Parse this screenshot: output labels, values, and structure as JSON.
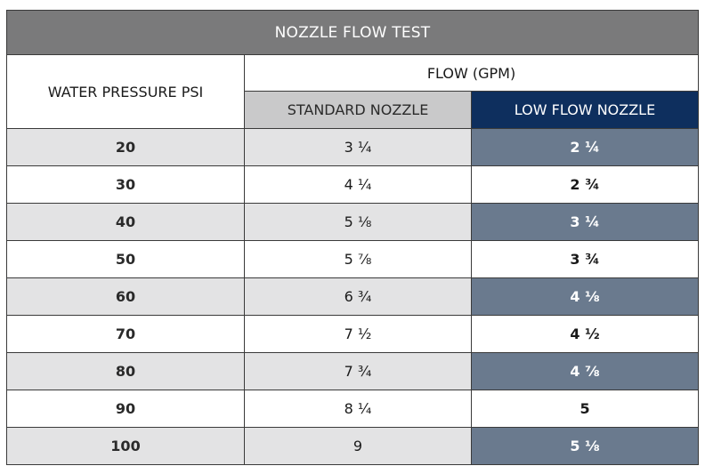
{
  "table": {
    "title": "NOZZLE FLOW TEST",
    "pressure_header": "WATER PRESSURE PSI",
    "flow_header": "FLOW (GPM)",
    "standard_header": "STANDARD NOZZLE",
    "low_flow_header": "LOW FLOW NOZZLE",
    "rows": [
      {
        "psi": "20",
        "standard": "3 ¼",
        "low": "2 ¼"
      },
      {
        "psi": "30",
        "standard": "4 ¼",
        "low": "2 ¾"
      },
      {
        "psi": "40",
        "standard": "5 ⅛",
        "low": "3 ¼"
      },
      {
        "psi": "50",
        "standard": "5 ⅞",
        "low": "3 ¾"
      },
      {
        "psi": "60",
        "standard": "6 ¾",
        "low": "4 ⅛"
      },
      {
        "psi": "70",
        "standard": "7 ½",
        "low": "4 ½"
      },
      {
        "psi": "80",
        "standard": "7 ¾",
        "low": "4 ⅞"
      },
      {
        "psi": "90",
        "standard": "8 ¼",
        "low": "5"
      },
      {
        "psi": "100",
        "standard": "9",
        "low": "5 ⅛"
      }
    ]
  },
  "colors": {
    "title_bg": "#7a7a7b",
    "standard_header_bg": "#c9c9ca",
    "low_flow_header_bg": "#0e2f5e",
    "shaded_row_bg": "#e3e3e4",
    "shaded_low_flow_bg": "#6a7a8e"
  }
}
